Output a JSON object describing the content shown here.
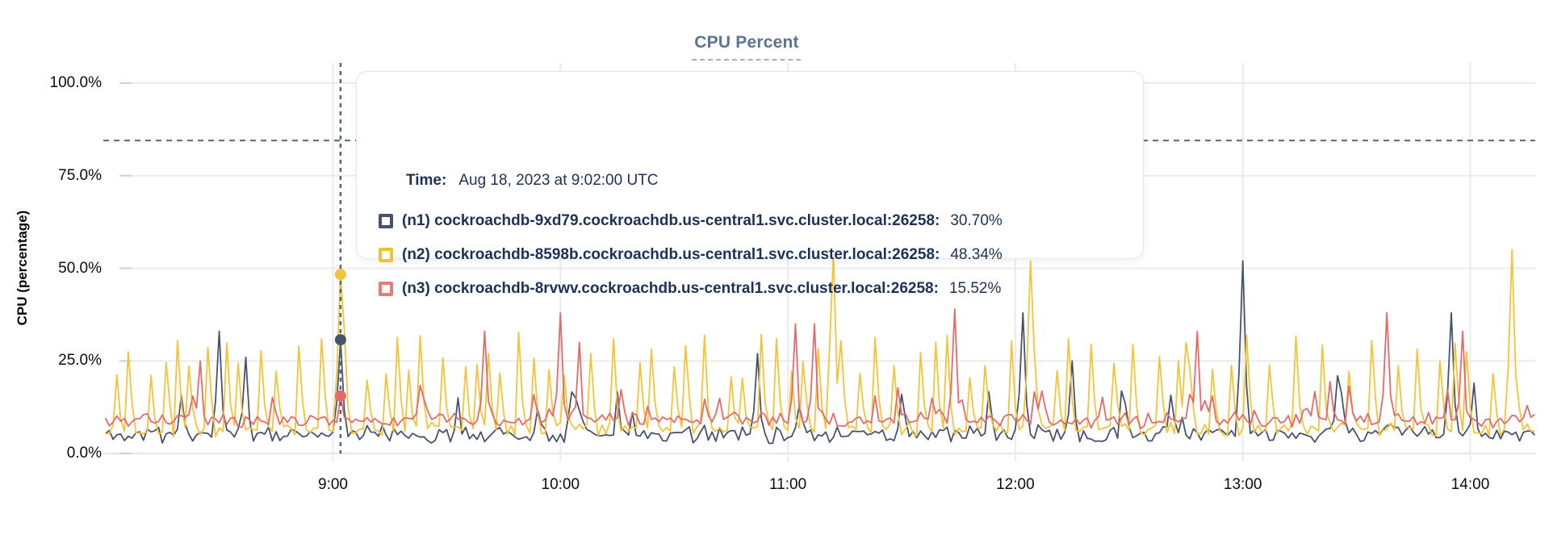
{
  "title": {
    "text": "CPU Percent"
  },
  "tooltip": {
    "time_label": "Time:",
    "time_value": "Aug 18, 2023 at 9:02:00 UTC",
    "rows": [
      {
        "node": "n1",
        "name": "(n1) cockroachdb-9xd79.cockroachdb.us-central1.svc.cluster.local:26258:",
        "value": "30.70%",
        "color": "#46536e"
      },
      {
        "node": "n2",
        "name": "(n2) cockroachdb-8598b.cockroachdb.us-central1.svc.cluster.local:26258:",
        "value": "48.34%",
        "color": "#f2c12f"
      },
      {
        "node": "n3",
        "name": "(n3) cockroachdb-8rvwv.cockroachdb.us-central1.svc.cluster.local:26258:",
        "value": "15.52%",
        "color": "#ea7a76"
      }
    ]
  },
  "chart_data": {
    "type": "line",
    "title": "CPU Percent",
    "xlabel": "",
    "ylabel": "CPU (percentage)",
    "ylim": [
      0,
      100
    ],
    "xlim_hours": [
      8.0,
      14.283
    ],
    "grid": true,
    "legend_position": "tooltip",
    "y_ticks": [
      {
        "v": 0,
        "label": "0.0%"
      },
      {
        "v": 25,
        "label": "25.0%"
      },
      {
        "v": 50,
        "label": "50.0%"
      },
      {
        "v": 75,
        "label": "75.0%"
      },
      {
        "v": 100,
        "label": "100.0%"
      }
    ],
    "x_ticks": [
      {
        "h": 9,
        "label": "9:00"
      },
      {
        "h": 10,
        "label": "10:00"
      },
      {
        "h": 11,
        "label": "11:00"
      },
      {
        "h": 12,
        "label": "12:00"
      },
      {
        "h": 13,
        "label": "13:00"
      },
      {
        "h": 14,
        "label": "14:00"
      }
    ],
    "threshold_percent": 84.5,
    "hover": {
      "time_hours": 9.0333,
      "time_text": "Aug 18, 2023 at 9:02:00 UTC",
      "values": {
        "n1": 30.7,
        "n2": 48.34,
        "n3": 15.52
      }
    },
    "crosshair_color": "#51677c",
    "threshold_color": "#56687e",
    "sample_step_minutes": 1,
    "series": [
      {
        "id": "n1",
        "name": "(n1) cockroachdb-9xd79.cockroachdb.us-central1.svc.cluster.local:26258",
        "color": "#46536e",
        "seed": 11,
        "baseline": [
          3.5,
          7.0
        ],
        "jitter": 1.8,
        "spikes": {
          "mode": "random",
          "prob": 0.05,
          "amp": [
            4,
            13
          ]
        },
        "major_peaks": [
          [
            8.5,
            33
          ],
          [
            8.62,
            26
          ],
          [
            9.55,
            15
          ],
          [
            10.07,
            15
          ],
          [
            10.87,
            27
          ],
          [
            11.5,
            16
          ],
          [
            12.03,
            38
          ],
          [
            12.25,
            25
          ],
          [
            13.0,
            52
          ],
          [
            13.42,
            21
          ],
          [
            13.92,
            38
          ],
          [
            14.02,
            19
          ]
        ],
        "hover_value": 30.7
      },
      {
        "id": "n2",
        "name": "(n2) cockroachdb-8598b.cockroachdb.us-central1.svc.cluster.local:26258",
        "color": "#f2c436",
        "seed": 22,
        "baseline": [
          5.0,
          8.0
        ],
        "jitter": 1.5,
        "spikes": {
          "mode": "periodic",
          "gap": [
            3,
            7
          ],
          "amp": [
            14,
            26
          ]
        },
        "major_peaks": [
          [
            11.2,
            54
          ],
          [
            12.07,
            52
          ],
          [
            12.75,
            30
          ],
          [
            14.18,
            55
          ]
        ],
        "hover_value": 48.34
      },
      {
        "id": "n3",
        "name": "(n3) cockroachdb-8rvwv.cockroachdb.us-central1.svc.cluster.local:26258",
        "color": "#e5696a",
        "seed": 33,
        "baseline": [
          7.5,
          10.5
        ],
        "jitter": 1.6,
        "spikes": {
          "mode": "random",
          "prob": 0.06,
          "amp": [
            3,
            9
          ]
        },
        "major_peaks": [
          [
            8.42,
            25
          ],
          [
            9.67,
            33
          ],
          [
            10.0,
            38
          ],
          [
            10.08,
            30
          ],
          [
            11.03,
            35
          ],
          [
            11.12,
            35
          ],
          [
            11.73,
            39
          ],
          [
            12.8,
            33
          ],
          [
            13.63,
            38
          ],
          [
            13.97,
            33
          ]
        ],
        "hover_value": 15.52
      }
    ]
  },
  "colors": {
    "grid": "#ececee",
    "axis_line": "#e3e5e8",
    "tick_stub": "#ced3d8",
    "title": "#5b7394",
    "tooltip_text": "#1b3155"
  }
}
